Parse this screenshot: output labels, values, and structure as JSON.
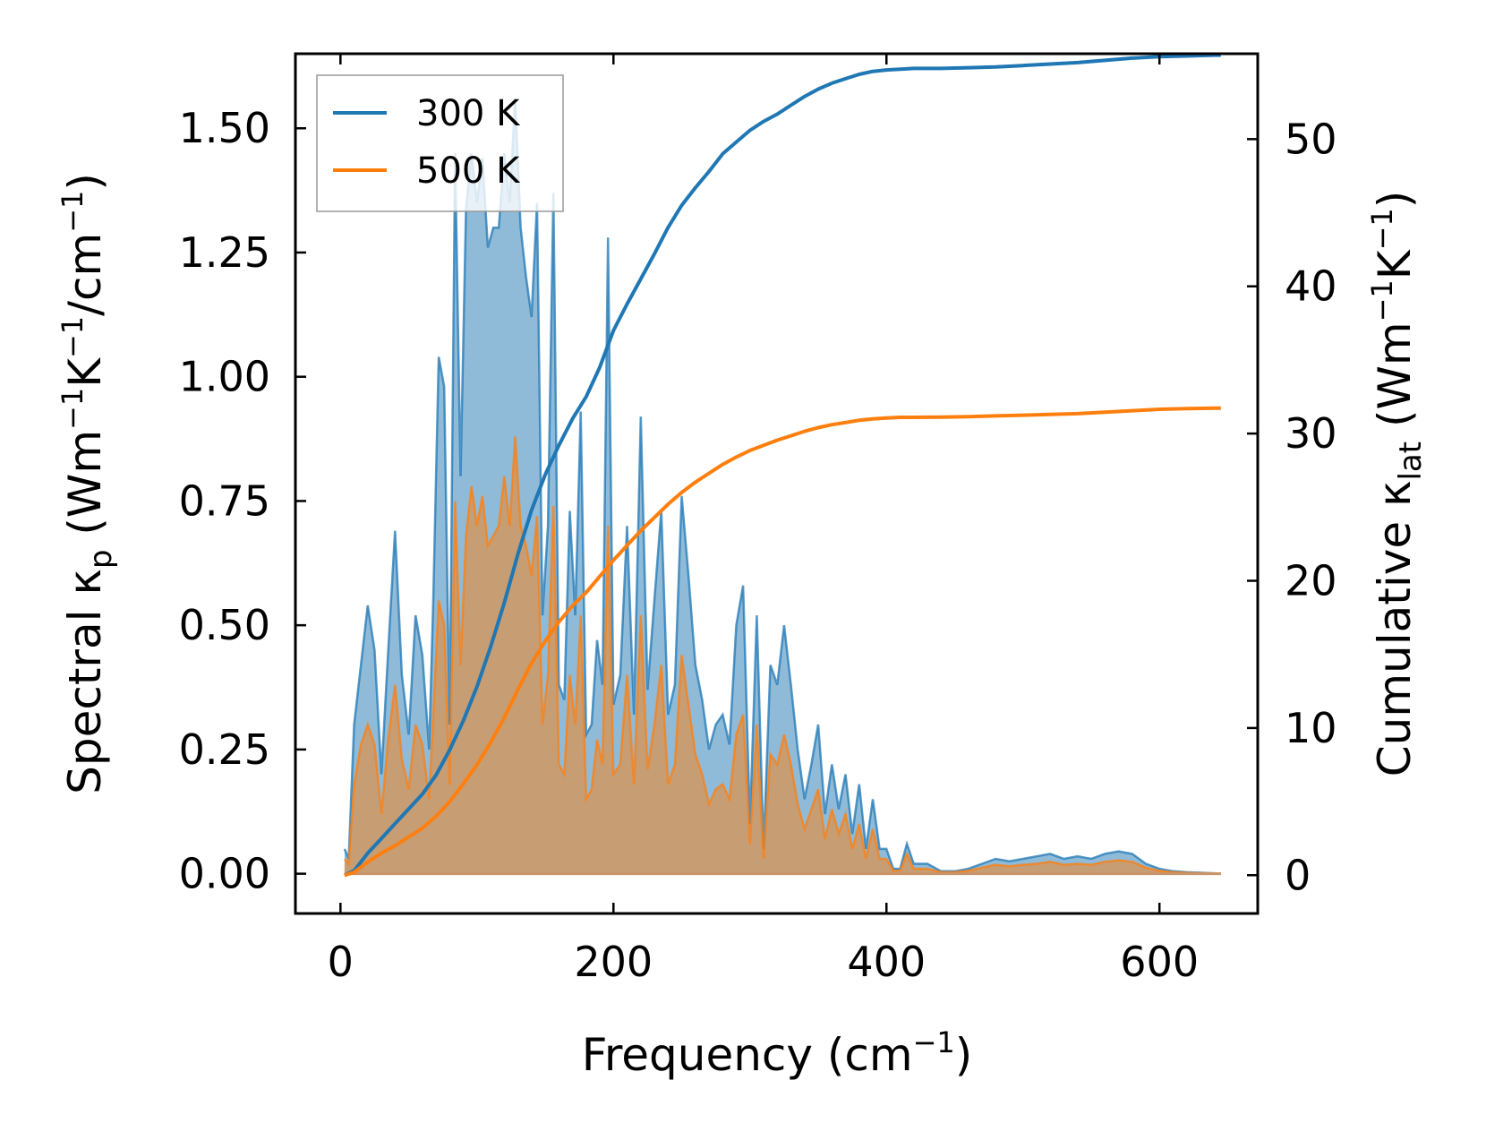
{
  "chart_data": {
    "type": "line",
    "xlabel": "Frequency (cm",
    "xlabel_sup": "−1",
    "xlabel_end": ")",
    "ylabel_left_parts": [
      "Spectral κ",
      "p",
      " (Wm",
      "−1",
      "K",
      "−1",
      "/cm",
      "−1",
      ")"
    ],
    "ylabel_right_parts": [
      "Cumulative κ",
      "lat",
      " (Wm",
      "−1",
      "K",
      "−1",
      ")"
    ],
    "xlim": [
      -33,
      672
    ],
    "ylim_left": [
      -0.08,
      1.65
    ],
    "ylim_right": [
      -2.6,
      55.8
    ],
    "x_ticks": [
      0,
      200,
      400,
      600
    ],
    "x_tick_labels": [
      "0",
      "200",
      "400",
      "600"
    ],
    "y_left_ticks": [
      0,
      0.25,
      0.5,
      0.75,
      1.0,
      1.25,
      1.5
    ],
    "y_left_tick_labels": [
      "0.00",
      "0.25",
      "0.50",
      "0.75",
      "1.00",
      "1.25",
      "1.50"
    ],
    "y_right_ticks": [
      0,
      10,
      20,
      30,
      40,
      50
    ],
    "y_right_tick_labels": [
      "0",
      "10",
      "20",
      "30",
      "40",
      "50"
    ],
    "legend_position": "top-left",
    "legend": [
      {
        "name": "300 K",
        "color": "#1f77b4"
      },
      {
        "name": "500 K",
        "color": "#ff7f0e"
      }
    ],
    "spectral": {
      "x": [
        3,
        6,
        10,
        15,
        20,
        25,
        30,
        35,
        40,
        45,
        50,
        55,
        60,
        65,
        68,
        72,
        76,
        80,
        84,
        88,
        92,
        96,
        100,
        104,
        108,
        112,
        116,
        120,
        124,
        128,
        132,
        136,
        140,
        144,
        148,
        152,
        156,
        160,
        164,
        168,
        172,
        176,
        180,
        184,
        188,
        192,
        196,
        200,
        205,
        210,
        215,
        220,
        225,
        230,
        235,
        240,
        245,
        250,
        255,
        260,
        265,
        270,
        275,
        280,
        285,
        290,
        295,
        300,
        305,
        310,
        315,
        320,
        325,
        330,
        335,
        340,
        345,
        350,
        355,
        360,
        365,
        370,
        375,
        380,
        385,
        390,
        395,
        400,
        405,
        410,
        415,
        420,
        430,
        440,
        450,
        460,
        470,
        480,
        490,
        500,
        510,
        520,
        530,
        540,
        550,
        560,
        570,
        580,
        590,
        600,
        610,
        620,
        630,
        640,
        645
      ],
      "series": [
        {
          "name": "300 K",
          "color": "#1f77b4",
          "values": [
            0.05,
            0.03,
            0.3,
            0.42,
            0.54,
            0.45,
            0.2,
            0.45,
            0.69,
            0.4,
            0.28,
            0.52,
            0.44,
            0.25,
            0.55,
            1.04,
            0.98,
            0.3,
            1.45,
            0.8,
            1.34,
            1.45,
            1.35,
            1.44,
            1.26,
            1.3,
            1.3,
            1.45,
            1.35,
            1.56,
            1.3,
            1.2,
            1.12,
            1.35,
            0.52,
            0.7,
            1.37,
            0.38,
            0.35,
            0.73,
            0.52,
            0.93,
            0.28,
            0.3,
            0.47,
            0.38,
            1.28,
            0.34,
            0.4,
            0.7,
            0.32,
            0.92,
            0.37,
            0.55,
            0.73,
            0.32,
            0.38,
            0.76,
            0.6,
            0.42,
            0.35,
            0.25,
            0.3,
            0.32,
            0.26,
            0.5,
            0.58,
            0.1,
            0.52,
            0.05,
            0.42,
            0.38,
            0.5,
            0.38,
            0.25,
            0.15,
            0.22,
            0.3,
            0.12,
            0.22,
            0.13,
            0.2,
            0.08,
            0.18,
            0.05,
            0.15,
            0.05,
            0.05,
            0.01,
            0.01,
            0.06,
            0.02,
            0.02,
            0.005,
            0.005,
            0.01,
            0.02,
            0.03,
            0.025,
            0.03,
            0.035,
            0.04,
            0.03,
            0.035,
            0.03,
            0.04,
            0.045,
            0.04,
            0.02,
            0.01,
            0.005,
            0.003,
            0.002,
            0.001,
            0
          ]
        },
        {
          "name": "500 K",
          "color": "#ff7f0e",
          "values": [
            0.03,
            0.02,
            0.18,
            0.26,
            0.3,
            0.26,
            0.12,
            0.27,
            0.38,
            0.23,
            0.17,
            0.3,
            0.26,
            0.15,
            0.32,
            0.55,
            0.5,
            0.18,
            0.75,
            0.42,
            0.68,
            0.78,
            0.7,
            0.76,
            0.66,
            0.68,
            0.7,
            0.8,
            0.7,
            0.88,
            0.7,
            0.66,
            0.6,
            0.72,
            0.3,
            0.4,
            0.74,
            0.22,
            0.2,
            0.4,
            0.3,
            0.52,
            0.15,
            0.17,
            0.27,
            0.22,
            0.7,
            0.2,
            0.22,
            0.4,
            0.18,
            0.52,
            0.21,
            0.3,
            0.42,
            0.18,
            0.22,
            0.44,
            0.34,
            0.24,
            0.2,
            0.14,
            0.17,
            0.18,
            0.15,
            0.28,
            0.32,
            0.06,
            0.3,
            0.03,
            0.24,
            0.22,
            0.28,
            0.22,
            0.14,
            0.09,
            0.13,
            0.17,
            0.07,
            0.13,
            0.08,
            0.12,
            0.05,
            0.1,
            0.03,
            0.09,
            0.03,
            0.03,
            0.006,
            0.006,
            0.04,
            0.01,
            0.01,
            0.003,
            0.003,
            0.006,
            0.012,
            0.018,
            0.015,
            0.018,
            0.02,
            0.024,
            0.018,
            0.02,
            0.018,
            0.024,
            0.027,
            0.024,
            0.012,
            0.006,
            0.003,
            0.002,
            0.001,
            0.001,
            0
          ]
        }
      ]
    },
    "cumulative": {
      "x": [
        3,
        10,
        20,
        30,
        40,
        50,
        60,
        70,
        80,
        90,
        100,
        110,
        120,
        130,
        140,
        150,
        160,
        170,
        180,
        190,
        200,
        210,
        220,
        230,
        240,
        250,
        260,
        270,
        280,
        290,
        300,
        310,
        320,
        330,
        340,
        350,
        360,
        370,
        380,
        390,
        400,
        410,
        420,
        440,
        460,
        480,
        500,
        520,
        540,
        560,
        580,
        600,
        620,
        640,
        645
      ],
      "series": [
        {
          "name": "300 K",
          "color": "#1f77b4",
          "values": [
            0,
            0.3,
            1.5,
            2.5,
            3.5,
            4.5,
            5.5,
            6.8,
            8.5,
            10.5,
            12.8,
            15.5,
            18.5,
            21.8,
            24.8,
            27.2,
            29.2,
            31.0,
            32.5,
            34.5,
            37.0,
            38.8,
            40.5,
            42.2,
            44.0,
            45.5,
            46.7,
            47.8,
            49.0,
            49.8,
            50.6,
            51.2,
            51.7,
            52.3,
            52.9,
            53.4,
            53.8,
            54.1,
            54.4,
            54.6,
            54.7,
            54.75,
            54.8,
            54.8,
            54.85,
            54.9,
            55.0,
            55.1,
            55.2,
            55.35,
            55.5,
            55.6,
            55.65,
            55.7,
            55.7
          ]
        },
        {
          "name": "500 K",
          "color": "#ff7f0e",
          "values": [
            0,
            0.2,
            0.9,
            1.5,
            2.0,
            2.6,
            3.2,
            4.0,
            5.0,
            6.2,
            7.5,
            9.0,
            10.7,
            12.6,
            14.4,
            15.9,
            17.2,
            18.3,
            19.2,
            20.3,
            21.4,
            22.4,
            23.4,
            24.3,
            25.2,
            26.0,
            26.7,
            27.3,
            27.9,
            28.4,
            28.85,
            29.2,
            29.55,
            29.85,
            30.15,
            30.4,
            30.6,
            30.75,
            30.9,
            31.0,
            31.05,
            31.1,
            31.1,
            31.12,
            31.15,
            31.2,
            31.25,
            31.3,
            31.35,
            31.45,
            31.55,
            31.65,
            31.7,
            31.72,
            31.72
          ]
        }
      ]
    }
  }
}
